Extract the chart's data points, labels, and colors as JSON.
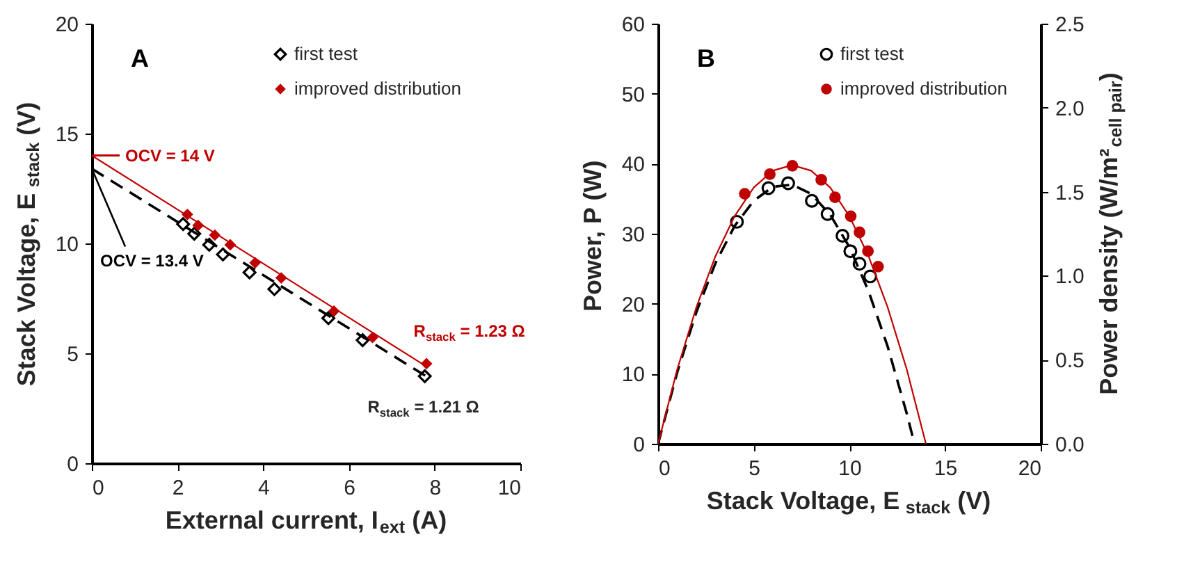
{
  "chart_data": [
    {
      "type": "scatter",
      "title": "A",
      "xlabel": "External current, I$_{ext}$ (A)",
      "ylabel": "Stack Voltage, E$_{stack}$ (V)",
      "xlim": [
        0,
        10
      ],
      "xticks": [
        0,
        2,
        4,
        6,
        8,
        10
      ],
      "ylim": [
        0,
        20
      ],
      "yticks": [
        0,
        5,
        10,
        15,
        20
      ],
      "grid": false,
      "legend": "top right",
      "series": [
        {
          "name": "first test",
          "color": "#000000",
          "marker": "diamond",
          "x": [
            2.13,
            2.39,
            2.74,
            3.06,
            3.68,
            4.26,
            5.52,
            6.32,
            7.77
          ],
          "values": [
            10.88,
            10.44,
            9.94,
            9.5,
            8.68,
            7.92,
            6.6,
            5.6,
            3.96
          ]
        },
        {
          "name": "improved distribution",
          "color": "#c00000",
          "marker": "diamond",
          "x": [
            2.23,
            2.48,
            2.87,
            3.23,
            3.81,
            4.42,
            5.65,
            6.55,
            7.81
          ],
          "values": [
            11.32,
            10.82,
            10.38,
            9.94,
            9.12,
            8.43,
            6.92,
            5.72,
            4.53
          ]
        },
        {
          "type": "line",
          "color": "#000000",
          "line_style": "dashed",
          "marker": "none",
          "x": [
            0,
            7.8
          ],
          "values": [
            13.4,
            3.96
          ]
        },
        {
          "type": "line",
          "color": "#c00000",
          "line_style": "solid",
          "marker": "none",
          "x": [
            0,
            7.8
          ],
          "values": [
            14,
            4.41
          ]
        }
      ],
      "annotations": [
        {
          "text": "OCV = 14 V",
          "x": 0,
          "y": 14
        },
        {
          "text": "OCV = 13.4 V",
          "x": 0,
          "y": 13.4
        },
        {
          "text": "R$_{stack}$ = 1.23 Ω",
          "x": 6.6,
          "y": 5.9
        },
        {
          "text": "R$_{stack}$ = 1.21 Ω",
          "x": 7.8,
          "y": 3.96
        }
      ]
    },
    {
      "type": "scatter",
      "title": "B",
      "xlabel": "Stack Voltage, E$_{stack}$ (V)",
      "ylabel": "Power, P (W)",
      "y2label": "Power density (W/m²$_{cell pair}$)",
      "xlim": [
        0,
        20
      ],
      "xticks": [
        0,
        5,
        10,
        15,
        20
      ],
      "ylim": [
        0,
        60
      ],
      "yticks": [
        0,
        10,
        20,
        30,
        40,
        50,
        60
      ],
      "y2lim": [
        0,
        2.5
      ],
      "y2ticks": [
        {
          "value": 0,
          "label": "0.0"
        },
        {
          "value": 0.5,
          "label": "0.5"
        },
        {
          "value": 1,
          "label": "1.0"
        },
        {
          "value": 1.5,
          "label": "1.5"
        },
        {
          "value": 2,
          "label": "2.0"
        },
        {
          "value": 2.5,
          "label": "2.5"
        }
      ],
      "grid": false,
      "legend": "top right",
      "series": [
        {
          "name": "first test",
          "color": "#000000",
          "marker": "circle",
          "x": [
            4.12,
            5.77,
            6.8,
            8.04,
            8.86,
            9.64,
            10.05,
            10.53,
            11.09
          ],
          "values": [
            31.7,
            36.5,
            37.2,
            34.7,
            32.8,
            29.7,
            27.5,
            25.7,
            23.9
          ]
        },
        {
          "name": "improved distribution",
          "color": "#c00000",
          "marker": "circle",
          "x": [
            4.53,
            5.84,
            7.02,
            8.53,
            9.25,
            10.07,
            10.53,
            10.97,
            11.5
          ],
          "values": [
            35.7,
            38.5,
            39.7,
            37.7,
            35.2,
            32.5,
            30.2,
            27.5,
            25.3
          ]
        },
        {
          "type": "line",
          "color": "#000000",
          "line_style": "dashed",
          "marker": "none",
          "x": [
            0,
            1,
            2,
            3,
            4,
            5,
            6,
            7,
            8,
            9,
            10,
            11,
            12,
            13,
            13.4
          ],
          "values": [
            0,
            10.2,
            18.8,
            25.8,
            31.1,
            34.7,
            36.7,
            37.0,
            35.7,
            32.7,
            28.1,
            21.8,
            13.9,
            4.3,
            0
          ]
        },
        {
          "type": "line",
          "color": "#c00000",
          "line_style": "solid",
          "marker": "none",
          "x": [
            0,
            1,
            2,
            3,
            4,
            5,
            6,
            7,
            8,
            9,
            10,
            11,
            12,
            13,
            14
          ],
          "values": [
            0,
            10.6,
            19.5,
            26.8,
            32.5,
            36.6,
            39.0,
            39.8,
            39.0,
            36.6,
            32.5,
            26.8,
            19.5,
            10.6,
            0
          ]
        }
      ]
    }
  ]
}
